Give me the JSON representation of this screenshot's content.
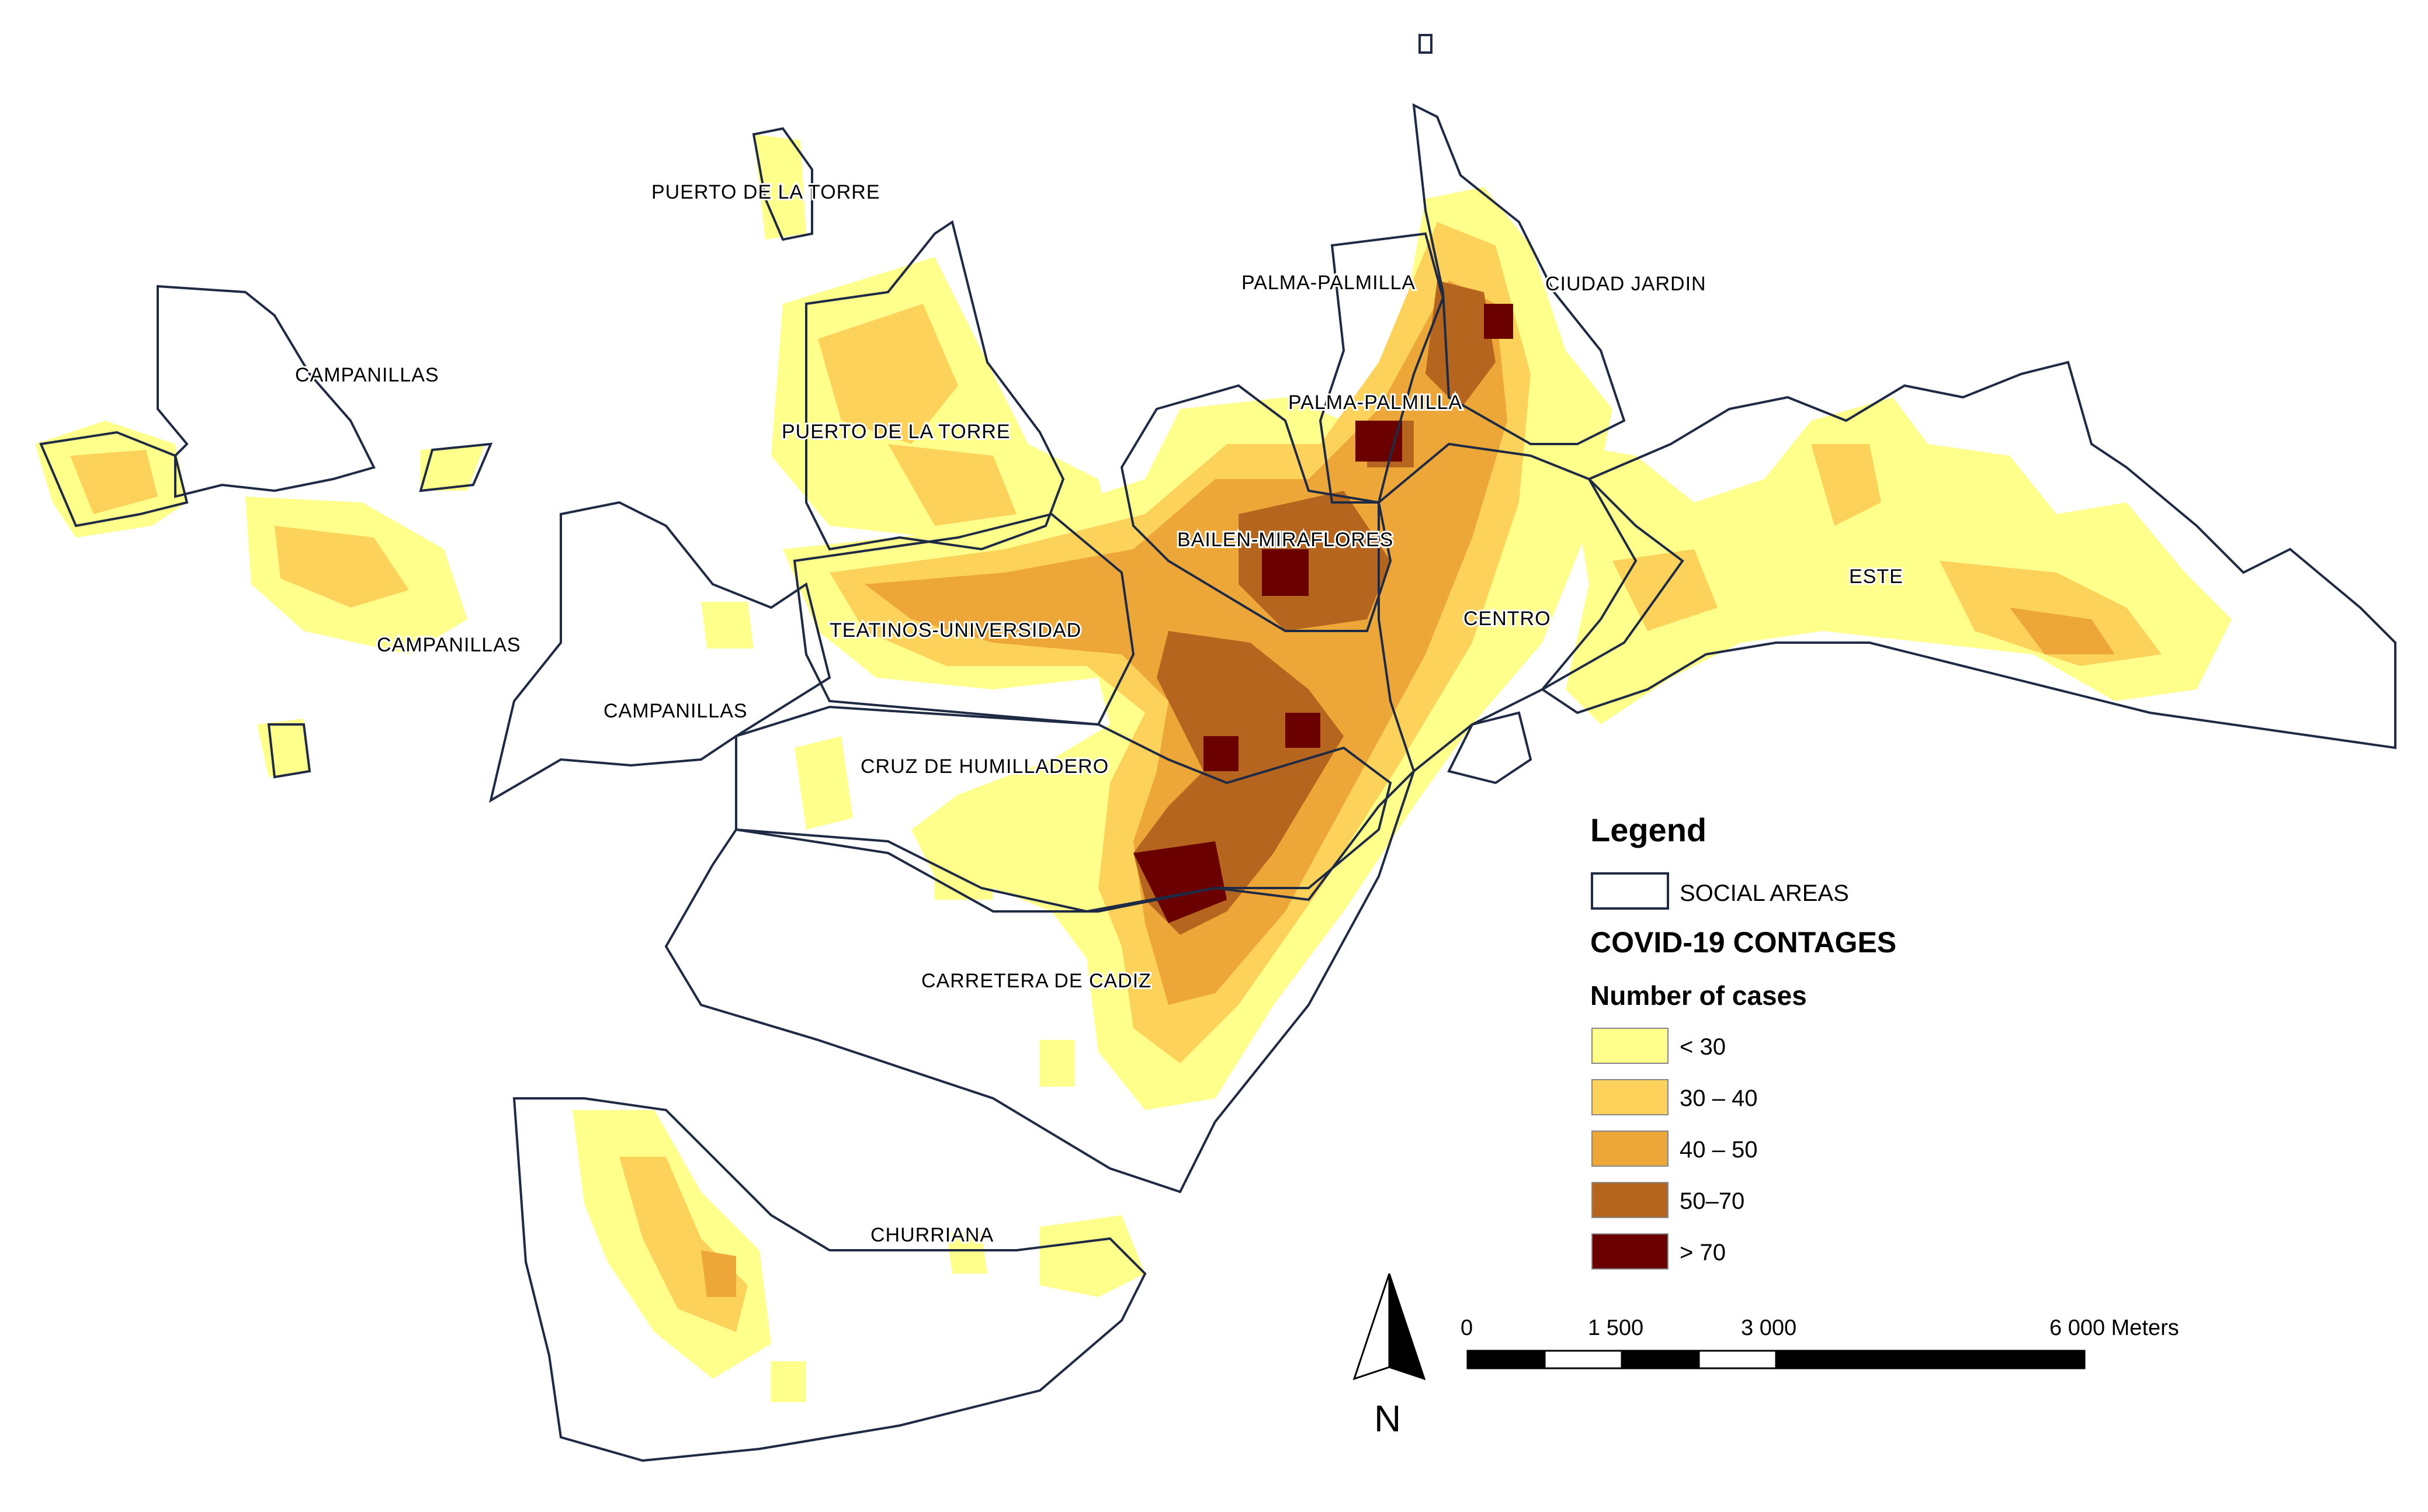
{
  "legend": {
    "title": "Legend",
    "boundary_label": "SOCIAL AREAS",
    "layer_title": "COVID-19 CONTAGES",
    "field_title": "Number of cases",
    "classes": [
      {
        "label": "< 30",
        "color": "#ffff8c"
      },
      {
        "label": "30 – 40",
        "color": "#fcd25a"
      },
      {
        "label": "40 – 50",
        "color": "#eda638"
      },
      {
        "label": "50–70",
        "color": "#b5651d"
      },
      {
        "label": "> 70",
        "color": "#6b0000"
      }
    ]
  },
  "scale_bar": {
    "labels": [
      "0",
      "1 500",
      "3 000",
      "6 000 Meters"
    ]
  },
  "north_arrow": {
    "label": "N"
  },
  "area_labels": [
    "PUERTO DE LA TORRE",
    "PALMA-PALMILLA",
    "CIUDAD JARDIN",
    "CAMPANILLAS",
    "PALMA-PALMILLA",
    "PUERTO DE LA TORRE",
    "BAILEN-MIRAFLORES",
    "ESTE",
    "CAMPANILLAS",
    "TEATINOS-UNIVERSIDAD",
    "CENTRO",
    "CAMPANILLAS",
    "CRUZ DE HUMILLADERO",
    "CARRETERA DE CADIZ",
    "CHURRIANA"
  ]
}
